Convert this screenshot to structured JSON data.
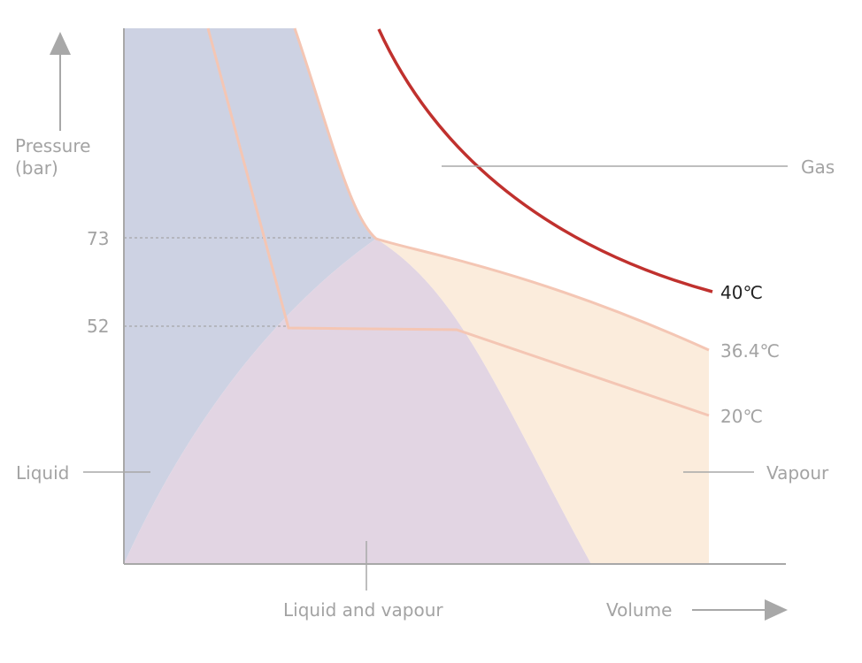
{
  "axes": {
    "y_label_line1": "Pressure",
    "y_label_line2": "(bar)",
    "x_label": "Volume",
    "y_tick_73": "73",
    "y_tick_52": "52"
  },
  "regions": {
    "gas": "Gas",
    "liquid": "Liquid",
    "vapour": "Vapour",
    "liquid_and_vapour": "Liquid and vapour"
  },
  "isotherms": {
    "t40": "40℃",
    "t36": "36.4℃",
    "t20": "20℃"
  },
  "colors": {
    "liquid_region": "#cdd2e3",
    "two_phase_region": "#e2d5e3",
    "vapour_region": "#fbecdc",
    "isotherm_light": "#f4c6b4",
    "isotherm_40": "#c0312e",
    "axis": "#a8a8a8",
    "label": "#a3a3a3"
  }
}
